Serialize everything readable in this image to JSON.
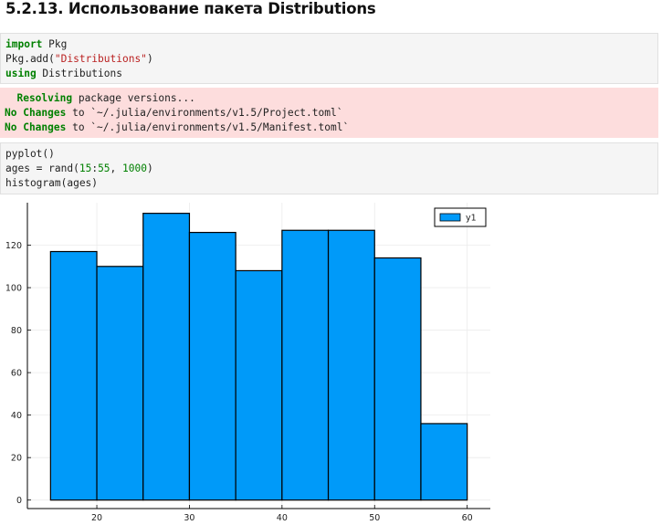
{
  "heading": "5.2.13. Использование пакета Distributions",
  "cell1": {
    "line1_kw": "import",
    "line1_rest": " Pkg",
    "line2_pre": "Pkg.add(",
    "line2_str": "\"Distributions\"",
    "line2_post": ")",
    "line3_kw": "using",
    "line3_rest": " Distributions"
  },
  "output1": {
    "line1_warn": "  Resolving",
    "line1_rest": " package versions...",
    "line2_warn": "No Changes",
    "line2_rest": " to `~/.julia/environments/v1.5/Project.toml`",
    "line3_warn": "No Changes",
    "line3_rest": " to `~/.julia/environments/v1.5/Manifest.toml`"
  },
  "cell2": {
    "line1": "pyplot()",
    "line2_pre": "ages = rand(",
    "line2_n1": "15",
    "line2_mid": ":",
    "line2_n2": "55",
    "line2_sep": ", ",
    "line2_n3": "1000",
    "line2_post": ")",
    "line3": "histogram(ages)"
  },
  "colors": {
    "bar": "#009af9",
    "edge": "#000000",
    "grid": "#ebebeb"
  },
  "chart_data": {
    "type": "bar",
    "title": "",
    "xlabel": "",
    "ylabel": "",
    "bin_edges": [
      15,
      20,
      25,
      30,
      35,
      40,
      45,
      50,
      55,
      60
    ],
    "values": [
      117,
      110,
      135,
      126,
      108,
      127,
      127,
      114,
      36
    ],
    "series": [
      {
        "name": "y1"
      }
    ],
    "xticks": [
      20,
      30,
      40,
      50,
      60
    ],
    "yticks": [
      0,
      20,
      40,
      60,
      80,
      100,
      120
    ],
    "xlim": [
      12.5,
      62.5
    ],
    "ylim": [
      -4,
      140
    ],
    "grid": true,
    "legend": "top-right"
  }
}
